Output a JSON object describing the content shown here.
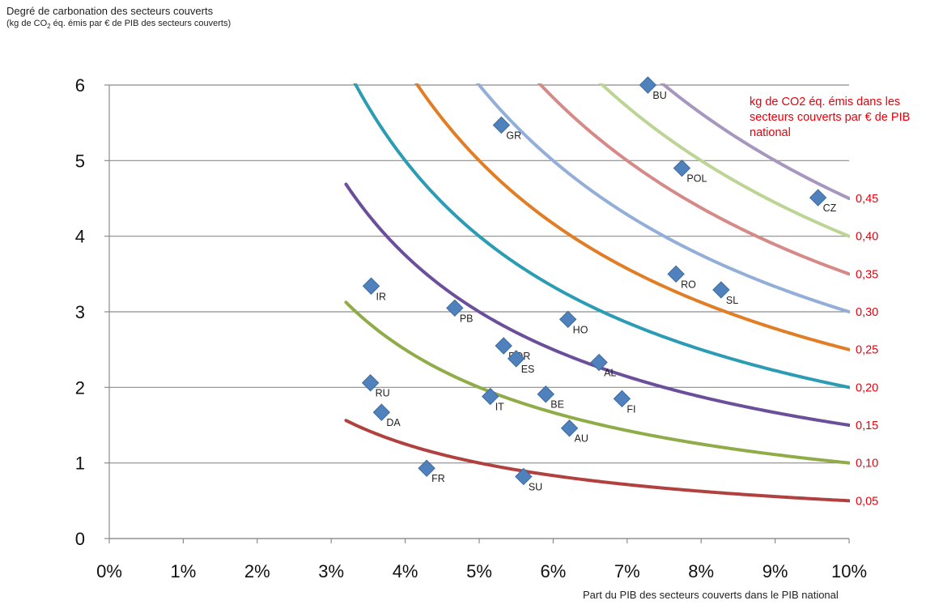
{
  "chart_data": {
    "type": "scatter",
    "title_line1": "Degré de carbonation des secteurs couverts",
    "title_line2_pre": "(kg de CO",
    "title_line2_sub": "2",
    "title_line2_post": " éq. émis par € de PIB des secteurs couverts)",
    "xlabel": "Part du PIB des secteurs couverts dans le PIB national",
    "curves_label": "kg de CO2 éq. émis dans les secteurs couverts par € de PIB national",
    "xlim": [
      0,
      0.1
    ],
    "ylim": [
      0,
      6
    ],
    "x_ticks": [
      "0%",
      "1%",
      "2%",
      "3%",
      "4%",
      "5%",
      "6%",
      "7%",
      "8%",
      "9%",
      "10%"
    ],
    "y_ticks": [
      "0",
      "1",
      "2",
      "3",
      "4",
      "5",
      "6"
    ],
    "grid": "horizontal",
    "marker_color": "#4f81bd",
    "points": [
      {
        "label": "BU",
        "x": 0.0728,
        "y": 6.0
      },
      {
        "label": "GR",
        "x": 0.053,
        "y": 5.47
      },
      {
        "label": "POL",
        "x": 0.0774,
        "y": 4.9
      },
      {
        "label": "CZ",
        "x": 0.0958,
        "y": 4.51
      },
      {
        "label": "RO",
        "x": 0.0766,
        "y": 3.5
      },
      {
        "label": "SL",
        "x": 0.0827,
        "y": 3.29
      },
      {
        "label": "IR",
        "x": 0.0354,
        "y": 3.34
      },
      {
        "label": "PB",
        "x": 0.0467,
        "y": 3.05
      },
      {
        "label": "HO",
        "x": 0.062,
        "y": 2.9
      },
      {
        "label": "POR",
        "x": 0.0533,
        "y": 2.55
      },
      {
        "label": "ES",
        "x": 0.055,
        "y": 2.38
      },
      {
        "label": "AL",
        "x": 0.0662,
        "y": 2.33
      },
      {
        "label": "RU",
        "x": 0.0353,
        "y": 2.06
      },
      {
        "label": "DA",
        "x": 0.0368,
        "y": 1.67
      },
      {
        "label": "IT",
        "x": 0.0515,
        "y": 1.88
      },
      {
        "label": "BE",
        "x": 0.059,
        "y": 1.91
      },
      {
        "label": "FI",
        "x": 0.0693,
        "y": 1.85
      },
      {
        "label": "AU",
        "x": 0.0622,
        "y": 1.46
      },
      {
        "label": "FR",
        "x": 0.0429,
        "y": 0.93
      },
      {
        "label": "SU",
        "x": 0.056,
        "y": 0.82
      }
    ],
    "curves": [
      {
        "label": "0,05",
        "value": 0.05,
        "color": "#b0413e"
      },
      {
        "label": "0,10",
        "value": 0.1,
        "color": "#8fac48"
      },
      {
        "label": "0,15",
        "value": 0.15,
        "color": "#6b4f9a"
      },
      {
        "label": "0,20",
        "value": 0.2,
        "color": "#2b9cb4"
      },
      {
        "label": "0,25",
        "value": 0.25,
        "color": "#e07d25"
      },
      {
        "label": "0,30",
        "value": 0.3,
        "color": "#93aed8"
      },
      {
        "label": "0,35",
        "value": 0.35,
        "color": "#d68a87"
      },
      {
        "label": "0,40",
        "value": 0.4,
        "color": "#bcd494"
      },
      {
        "label": "0,45",
        "value": 0.45,
        "color": "#a796be"
      }
    ],
    "curve_x_start": 0.032
  }
}
